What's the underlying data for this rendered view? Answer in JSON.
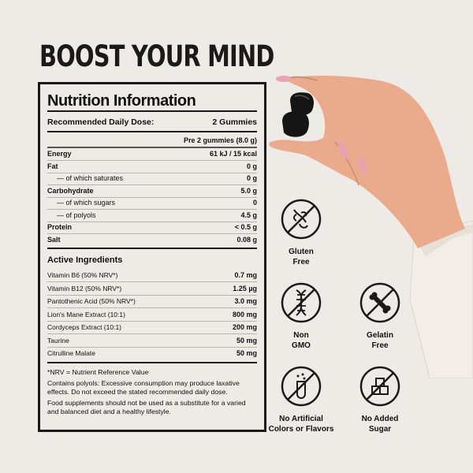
{
  "headline": "BOOST YOUR MIND",
  "panel": {
    "title": "Nutrition Information",
    "dose_label": "Recommended Daily Dose:",
    "dose_value": "2 Gummies",
    "per_label": "Pre 2 gummies (8.0 g)",
    "nutrients": [
      {
        "name": "Energy",
        "value": "61 kJ / 15 kcal"
      },
      {
        "name": "Fat",
        "value": "0 g"
      },
      {
        "name": "— of which saturates",
        "value": "0 g"
      },
      {
        "name": "Carbohydrate",
        "value": "5.0 g"
      },
      {
        "name": "— of which sugars",
        "value": "0"
      },
      {
        "name": "— of polyols",
        "value": "4.5 g"
      },
      {
        "name": "Protein",
        "value": "< 0.5 g"
      },
      {
        "name": "Salt",
        "value": "0.08 g"
      }
    ],
    "active_title": "Active Ingredients",
    "actives": [
      {
        "name": "Vitamin B6  (50% NRV*)",
        "value": "0.7 mg"
      },
      {
        "name": "Vitamin B12  (50% NRV*)",
        "value": "1.25 µg"
      },
      {
        "name": "Pantothenic Acid  (50% NRV*)",
        "value": "3.0 mg"
      },
      {
        "name": "Lion's Mane Extract (10:1)",
        "value": "800 mg"
      },
      {
        "name": "Cordyceps Extract (10:1)",
        "value": "200 mg"
      },
      {
        "name": "Taurine",
        "value": "50 mg"
      },
      {
        "name": "Citrulline Malate",
        "value": "50 mg"
      }
    ],
    "notes": [
      "*NRV = Nutrient Reference Value",
      "Contains polyols: Excessive consumption may produce laxative effects. Do not exceed the stated recommended daily dose.",
      "Food supplements should not be used as a substitute for a varied and balanced diet and a healthy lifestyle."
    ]
  },
  "badges": [
    {
      "icon": "no-gluten-icon",
      "line1": "Gluten",
      "line2": "Free"
    },
    {
      "icon": "no-gmo-icon",
      "line1": "Non",
      "line2": "GMO"
    },
    {
      "icon": "no-gelatin-icon",
      "line1": "Gelatin",
      "line2": "Free"
    },
    {
      "icon": "no-artificial-icon",
      "line1": "No Artificial",
      "line2": "Colors or Flavors"
    },
    {
      "icon": "no-sugar-icon",
      "line1": "No Added",
      "line2": "Sugar"
    }
  ],
  "colors": {
    "background": "#eeeae6",
    "ink": "#1a1a1a",
    "skin": "#e9ab8c",
    "sleeve": "#f2ede6",
    "gummy": "#151515"
  }
}
